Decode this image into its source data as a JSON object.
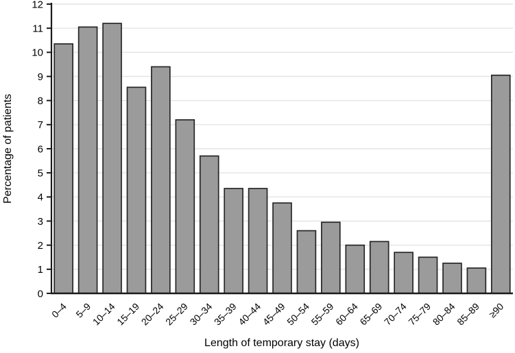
{
  "chart_data": {
    "type": "bar",
    "title": "",
    "categories": [
      "0–4",
      "5–9",
      "10–14",
      "15–19",
      "20–24",
      "25–29",
      "30–34",
      "35–39",
      "40–44",
      "45–49",
      "50–54",
      "55–59",
      "60–64",
      "65–69",
      "70–74",
      "75–79",
      "80–84",
      "85–89",
      "≥90"
    ],
    "values": [
      10.35,
      11.05,
      11.2,
      8.55,
      9.4,
      7.2,
      5.7,
      4.35,
      4.35,
      3.75,
      2.6,
      2.95,
      2.0,
      2.15,
      1.7,
      1.5,
      1.25,
      1.05,
      9.05
    ],
    "xlabel": "Length of temporary stay (days)",
    "ylabel": "Percentage of patients",
    "ylim": [
      0,
      12
    ],
    "ytick_step": 1,
    "grid": true,
    "legend": "none",
    "colors": {
      "bar_fill": "#9b9b9b",
      "bar_border": "#262626",
      "grid_line": "#e4e4e4",
      "axis_line": "#1a1a1a",
      "background": "#ffffff"
    }
  }
}
